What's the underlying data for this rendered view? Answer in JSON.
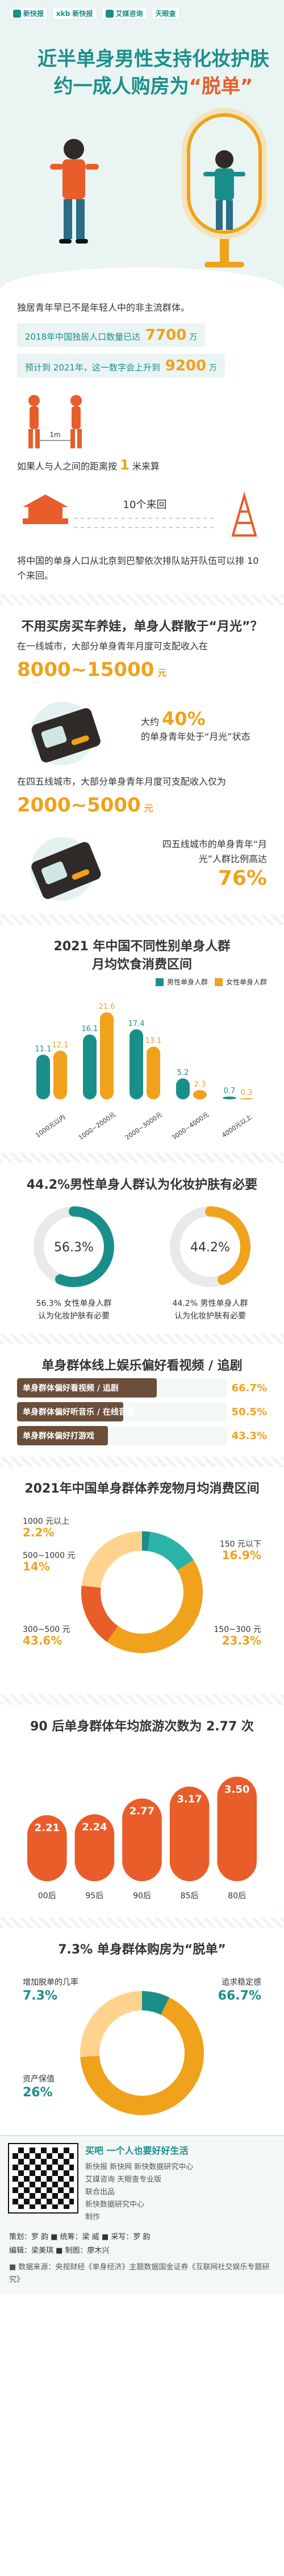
{
  "brand": {
    "logos": [
      "新快报",
      "xkb 新快报",
      "艾媒咨询",
      "天眼查"
    ]
  },
  "hero": {
    "title_line1": "近半单身男性支持化妆护肤",
    "title_line2_prefix": "约一成人购房为",
    "title_line2_quote": "“脱单”"
  },
  "intro": {
    "lead": "独居青年早已不是年轻人中的非主流群体。",
    "stat1_text": "2018年中国独居人口数量已达",
    "stat1_value": "7700",
    "stat1_unit": "万",
    "stat2_text": "预计到 2021年，这一数字会上升到",
    "stat2_value": "9200",
    "stat2_unit": "万",
    "people_text": "如果人与人之间的距离按",
    "people_value": "1",
    "people_unit": "米来算",
    "distance_label": "10个来回",
    "distance_value": "10",
    "distance_tail": "个来回",
    "gap_label": "1m",
    "summary": "将中国的单身人口从北京到巴黎依次排队站开队伍可以排 10 个来回。"
  },
  "moon": {
    "title": "不用买房买车养娃，单身人群散于“月光”？",
    "tier1_text": "在一线城市，大部分单身青年月度可支配收入在",
    "tier1_value": "8000~15000",
    "tier1_unit": "元",
    "tier1_share_text": "大约",
    "tier1_share": "40%",
    "tier1_share_tail": "的单身青年处于“月光”状态",
    "tier5_text": "在四五线城市，大部分单身青年月度可支配收入仅为",
    "tier5_value": "2000~5000",
    "tier5_unit": "元",
    "tier5_share_text": "四五线城市的单身青年“月光”人群比例高达",
    "tier5_share": "76%"
  },
  "food": {
    "title_line1": "2021 年中国不同性别单身人群",
    "title_line2": "月均饮食消费区间",
    "legend_male": "男性单身人群",
    "legend_female": "女性单身人群"
  },
  "chart_data": [
    {
      "type": "bar",
      "title": "2021 年中国不同性别单身人群 月均饮食消费区间",
      "categories": [
        "1000元以内",
        "1000~2000元",
        "2000~3000元",
        "3000~4000元",
        "4000元以上"
      ],
      "series": [
        {
          "name": "男性单身人群",
          "values": [
            11.1,
            16.1,
            17.4,
            5.2,
            0.7
          ]
        },
        {
          "name": "女性单身人群",
          "values": [
            12.1,
            21.6,
            13.1,
            2.3,
            0.3
          ]
        }
      ],
      "colors": [
        "#1a8f8a",
        "#f0a21c"
      ],
      "legend": "top-right"
    },
    {
      "type": "pie",
      "title": "44.2%男性单身人群认为化妆护肤有必要",
      "labels": [
        "女性单身人群认为化妆护肤有必要",
        "男性单身人群认为化妆护肤有必要"
      ],
      "values": [
        56.3,
        44.2
      ]
    },
    {
      "type": "bar",
      "title": "单身群体线上娱乐偏好看视频 / 追剧",
      "categories": [
        "单身群体偏好看视频 / 追剧",
        "单身群体偏好听音乐 / 在线音频",
        "单身群体偏好打游戏"
      ],
      "values": [
        66.7,
        50.5,
        43.3
      ]
    },
    {
      "type": "pie",
      "title": "2021年中国单身群体养宠物月均消费区间",
      "labels": [
        "1000 元以上",
        "500~1000元",
        "300~500元",
        "150元以下",
        "150~300元"
      ],
      "values": [
        2.2,
        14,
        43.6,
        16.9,
        23.3
      ]
    },
    {
      "type": "bar",
      "title": "90 后单身群体年均旅游次数为 2.77 次",
      "categories": [
        "00后",
        "95后",
        "90后",
        "85后",
        "80后"
      ],
      "values": [
        2.21,
        2.24,
        2.77,
        3.17,
        3.5
      ]
    },
    {
      "type": "pie",
      "title": "7.3% 单身群体购房为“脱单”",
      "labels": [
        "增加脱单的几率",
        "追求稳定感",
        "资产保值"
      ],
      "values": [
        7.3,
        66.7,
        26
      ]
    }
  ],
  "makeup": {
    "title": "44.2%男性单身人群认为化妆护肤有必要",
    "female_pct": "56.3%",
    "male_pct": "44.2%",
    "female_caption_line1": "56.3% 女性单身人群",
    "female_caption_line2": "认为化妆护肤有必要",
    "male_caption_line1": "44.2% 男性单身人群",
    "male_caption_line2": "认为化妆护肤有必要"
  },
  "ent": {
    "title": "单身群体线上娱乐偏好看视频 / 追剧",
    "rows": [
      {
        "label": "单身群体偏好看视频 / 追剧",
        "value": "66.7%"
      },
      {
        "label": "单身群体偏好听音乐 / 在线音频",
        "value": "50.5%"
      },
      {
        "label": "单身群体偏好打游戏",
        "value": "43.3%"
      }
    ]
  },
  "pet": {
    "title": "2021年中国单身群体养宠物月均消费区间",
    "labels": [
      {
        "k": "1000 元以上",
        "v": "2.2%"
      },
      {
        "k": "500~1000 元",
        "v": "14%"
      },
      {
        "k": "300~500 元",
        "v": "43.6%"
      },
      {
        "k": "150 元以下",
        "v": "16.9%"
      },
      {
        "k": "150~300 元",
        "v": "23.3%"
      }
    ]
  },
  "travel": {
    "title": "90 后单身群体年均旅游次数为 2.77 次",
    "bars": [
      {
        "k": "00后",
        "v": "2.21"
      },
      {
        "k": "95后",
        "v": "2.24"
      },
      {
        "k": "90后",
        "v": "2.77"
      },
      {
        "k": "85后",
        "v": "3.17"
      },
      {
        "k": "80后",
        "v": "3.50"
      }
    ]
  },
  "house": {
    "title": "7.3% 单身群体购房为“脱单”",
    "a_label": "增加脱单的几率",
    "a_value": "7.3%",
    "b_label": "追求稳定感",
    "b_value": "66.7%",
    "c_label": "资产保值",
    "c_value": "26%"
  },
  "footer": {
    "qr_caption": "买吧 一个人也要好好生活",
    "orgs_line1": "新快报  新快网  新快数据研究中心",
    "orgs_line2": "艾媒咨询  天眼查专业版",
    "orgs_line3": "联合出品",
    "orgs_line4": "新快数据研究中心",
    "orgs_line5": "制作",
    "credit_line1": "策划：罗 韵  ■ 统筹：梁 威  ■ 采写：罗 韵",
    "credit_line2": "编辑：梁美琪  ■ 制图：廖木兴",
    "source_line": "■ 数据来源：央视财经《单身经济》主题数据国金证券《互联网社交娱乐专题研究》"
  }
}
